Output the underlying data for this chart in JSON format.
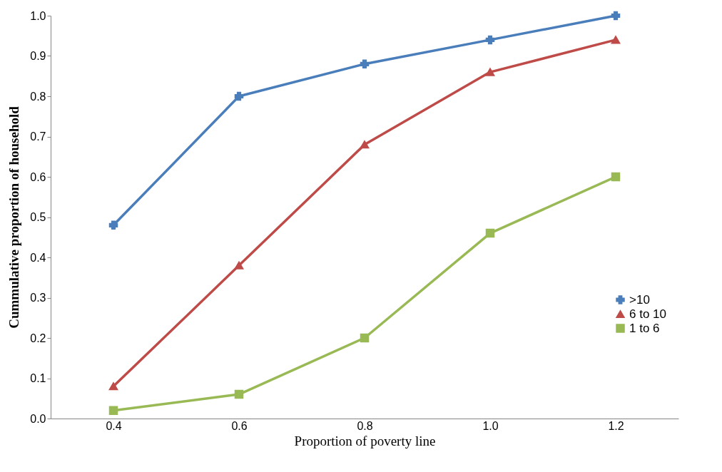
{
  "chart_data": {
    "type": "line",
    "xlabel": "Proportion of poverty line",
    "ylabel": "Cummulative proportion of household",
    "categories": [
      "0.4",
      "0.6",
      "0.8",
      "1.0",
      "1.2"
    ],
    "series": [
      {
        "name": ">10",
        "color": "#4a7ebb",
        "marker": "cross",
        "values": [
          0.48,
          0.8,
          0.88,
          0.94,
          1.0
        ]
      },
      {
        "name": "6 to 10",
        "color": "#be4b48",
        "marker": "triangle",
        "values": [
          0.08,
          0.38,
          0.68,
          0.86,
          0.94
        ]
      },
      {
        "name": "1 to 6",
        "color": "#98b954",
        "marker": "square",
        "values": [
          0.02,
          0.06,
          0.2,
          0.46,
          0.6
        ]
      }
    ],
    "ylim": [
      0,
      1.0
    ],
    "yticks": [
      {
        "value": 0,
        "label": "0.0"
      },
      {
        "value": 0.1,
        "label": "0.1"
      },
      {
        "value": 0.2,
        "label": "0.2"
      },
      {
        "value": 0.3,
        "label": "0.3"
      },
      {
        "value": 0.4,
        "label": "0.4"
      },
      {
        "value": 0.5,
        "label": "0.5"
      },
      {
        "value": 0.6,
        "label": "0.6"
      },
      {
        "value": 0.7,
        "label": "0.7"
      },
      {
        "value": 0.8,
        "label": "0.8"
      },
      {
        "value": 0.9,
        "label": "0.9"
      },
      {
        "value": 1.0,
        "label": "1.0"
      }
    ],
    "grid": false,
    "legend": "right",
    "line_style": "solid"
  }
}
